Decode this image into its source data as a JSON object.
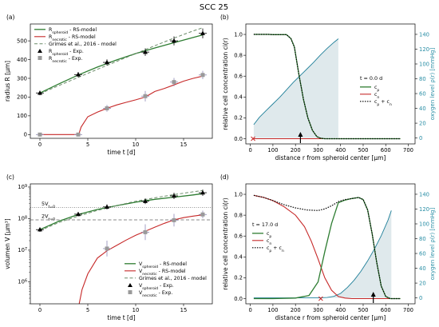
{
  "figure_title": "SCC 25",
  "colors": {
    "spheroid": "#2e7d32",
    "necrotic": "#c62828",
    "grimes": "#6c8c6a",
    "grey_marker": "#9a9a9a",
    "oxygen": "#1f7f99",
    "oxygen_fill": "#dfe9ec",
    "error_bar": "#8e88b6",
    "guide": "#888888"
  },
  "chart_data": [
    {
      "panel": "(a)",
      "type": "line",
      "xlabel": "time t [d]",
      "ylabel": "radius R [μm]",
      "xlim": [
        -1,
        18
      ],
      "ylim": [
        -20,
        590
      ],
      "xticks": [
        0,
        5,
        10,
        15
      ],
      "yticks": [
        0,
        100,
        200,
        300,
        400,
        500
      ],
      "grid": false,
      "legend_position": "upper-left",
      "series": [
        {
          "name": "R_spheroid - RS-model",
          "legend": "Rspheroid - RS-model",
          "style": "model-spheroid",
          "x": [
            0,
            2,
            4,
            6,
            8,
            10,
            12,
            14,
            16,
            17
          ],
          "y": [
            222,
            271,
            318,
            360,
            398,
            432,
            462,
            490,
            518,
            532
          ]
        },
        {
          "name": "R_necrotic - RS-model",
          "legend": "Rnecrotic - RS-model",
          "style": "model-necrotic",
          "x": [
            0,
            4.0,
            4.05,
            4.3,
            5,
            6,
            7,
            8,
            9,
            10,
            11,
            11.5,
            12,
            13,
            14,
            15,
            16,
            17
          ],
          "y": [
            0,
            0,
            0,
            40,
            95,
            120,
            140,
            158,
            172,
            185,
            200,
            215,
            230,
            246,
            265,
            285,
            300,
            312
          ]
        },
        {
          "name": "Grimes et al., 2016 - model",
          "legend": "Grimes et al., 2016 - model",
          "style": "grimes",
          "x": [
            0,
            2,
            4,
            6,
            8,
            10,
            12,
            14,
            16,
            17
          ],
          "y": [
            218,
            262,
            305,
            348,
            390,
            432,
            474,
            515,
            553,
            570
          ]
        },
        {
          "name": "R_spheroid - Exp.",
          "legend": "Rspheroid - Exp.",
          "style": "exp-spheroid",
          "x": [
            0,
            4,
            7,
            11,
            14,
            17
          ],
          "y": [
            222,
            320,
            385,
            440,
            500,
            540
          ],
          "yerr": [
            12,
            14,
            16,
            20,
            24,
            26
          ]
        },
        {
          "name": "R_necrotic - Exp.",
          "legend": "Rnecrotic - Exp.",
          "style": "exp-necrotic",
          "x": [
            0,
            4,
            7,
            11,
            14,
            17
          ],
          "y": [
            0,
            0,
            140,
            205,
            280,
            318
          ],
          "yerr": [
            6,
            6,
            18,
            28,
            22,
            22
          ]
        }
      ]
    },
    {
      "panel": "(b)",
      "type": "line",
      "xlabel": "distance r from spheroid center [μm]",
      "ylabel": "relative cell concentration ci(r)",
      "y2label": "oxygen level ρ(r) [mmHg]",
      "xlim": [
        -20,
        730
      ],
      "ylim": [
        -0.05,
        1.1
      ],
      "y2lim": [
        -8,
        154
      ],
      "xticks": [
        0,
        100,
        200,
        300,
        400,
        500,
        600,
        700
      ],
      "yticks": [
        0.0,
        0.2,
        0.4,
        0.6,
        0.8,
        1.0
      ],
      "y2ticks": [
        0,
        20,
        40,
        60,
        80,
        100,
        120,
        140
      ],
      "annotation": "t = 0.0 d",
      "legend_position": "center-right",
      "markers": {
        "cross_x": 12,
        "arrow_x": 222
      },
      "series": [
        {
          "name": "c_p",
          "legend": "cp",
          "style": "model-spheroid",
          "x": [
            15,
            40,
            60,
            80,
            100,
            120,
            140,
            160,
            180,
            195,
            215,
            235,
            255,
            275,
            295,
            310,
            330,
            360,
            400,
            450,
            500,
            550,
            600,
            650,
            665
          ],
          "y": [
            1.0,
            1.0,
            1.0,
            1.0,
            0.998,
            0.998,
            0.998,
            0.998,
            0.96,
            0.88,
            0.62,
            0.38,
            0.2,
            0.08,
            0.02,
            0.005,
            0,
            0,
            0,
            0,
            0,
            0,
            0,
            0,
            0
          ]
        },
        {
          "name": "c_n",
          "legend": "cn",
          "style": "model-necrotic",
          "x": [
            15,
            665
          ],
          "y": [
            0,
            0
          ]
        },
        {
          "name": "c_p + c_n",
          "legend": "cp + cn",
          "style": "sum",
          "x": [
            15,
            40,
            60,
            80,
            100,
            120,
            140,
            160,
            180,
            195,
            215,
            235,
            255,
            275,
            295,
            310,
            330,
            360,
            400,
            450,
            500,
            550,
            600,
            650,
            665
          ],
          "y": [
            1.0,
            1.0,
            1.0,
            1.0,
            0.998,
            0.998,
            0.998,
            0.998,
            0.96,
            0.88,
            0.62,
            0.38,
            0.2,
            0.08,
            0.02,
            0.005,
            0,
            0,
            0,
            0,
            0,
            0,
            0,
            0,
            0
          ]
        },
        {
          "name": "oxygen",
          "style": "oxygen",
          "axis": "right",
          "x": [
            15,
            40,
            70,
            100,
            130,
            160,
            190,
            220,
            250,
            280,
            310,
            340,
            370,
            390
          ],
          "y": [
            18,
            28,
            37,
            46,
            55,
            65,
            75,
            84,
            93,
            102,
            112,
            121,
            129,
            134
          ]
        }
      ]
    },
    {
      "panel": "(c)",
      "type": "line",
      "yscale": "log",
      "xlabel": "time t [d]",
      "ylabel": "volumen V [μm³]",
      "xlim": [
        -1,
        18
      ],
      "ylim_log10": [
        5.3,
        9.1
      ],
      "xticks": [
        0,
        5,
        10,
        15
      ],
      "yticks_log10": [
        6,
        7,
        8,
        9
      ],
      "legend_position": "lower-right",
      "hlines": [
        {
          "label": "5V_t=0",
          "text": "5Vt=0",
          "log10y": 8.35,
          "style": "dotted"
        },
        {
          "label": "2V_t=0",
          "text": "2Vt=0",
          "log10y": 7.96,
          "style": "dashed"
        }
      ],
      "series": [
        {
          "name": "V_spheroid - RS-model",
          "legend": "Vspheroid - RS-model",
          "style": "model-spheroid",
          "x": [
            0,
            2,
            4,
            6,
            8,
            10,
            12,
            14,
            16,
            17
          ],
          "log10y": [
            7.65,
            7.92,
            8.13,
            8.29,
            8.41,
            8.52,
            8.61,
            8.68,
            8.75,
            8.79
          ]
        },
        {
          "name": "V_necrotic - RS-model",
          "legend": "Vnecrotic - RS-model",
          "style": "model-necrotic",
          "x": [
            4.1,
            4.4,
            5,
            6,
            7,
            8,
            9,
            10,
            11,
            12,
            13,
            14,
            15,
            16,
            17
          ],
          "log10y": [
            5.3,
            5.75,
            6.25,
            6.75,
            6.98,
            7.15,
            7.32,
            7.47,
            7.6,
            7.73,
            7.85,
            7.96,
            8.03,
            8.08,
            8.12
          ]
        },
        {
          "name": "Grimes et al., 2016 - model",
          "legend": "Grimes et al., 2016 - model",
          "style": "grimes",
          "x": [
            0,
            2,
            4,
            6,
            8,
            10,
            12,
            14,
            16,
            17
          ],
          "log10y": [
            7.62,
            7.88,
            8.08,
            8.26,
            8.41,
            8.55,
            8.66,
            8.76,
            8.85,
            8.89
          ]
        },
        {
          "name": "V_spheroid - Exp.",
          "legend": "Vspheroid - Exp.",
          "style": "exp-spheroid",
          "x": [
            0,
            4,
            7,
            11,
            14,
            17
          ],
          "log10y": [
            7.65,
            8.14,
            8.37,
            8.55,
            8.72,
            8.82
          ],
          "yerr_log10": [
            0.07,
            0.07,
            0.08,
            0.09,
            0.1,
            0.1
          ]
        },
        {
          "name": "V_necrotic - Exp.",
          "legend": "Vnecrotic - Exp.",
          "style": "exp-necrotic",
          "x": [
            7,
            11,
            14,
            17
          ],
          "log10y": [
            7.05,
            7.57,
            7.95,
            8.13
          ],
          "yerr_log10": [
            0.25,
            0.25,
            0.2,
            0.12
          ]
        }
      ]
    },
    {
      "panel": "(d)",
      "type": "line",
      "xlabel": "distance r from spheroid center [μm]",
      "ylabel": "relative cell concentration ci(r)",
      "y2label": "oxygen level ρ(r) [mmHg]",
      "xlim": [
        -20,
        730
      ],
      "ylim": [
        -0.05,
        1.1
      ],
      "y2lim": [
        -8,
        154
      ],
      "xticks": [
        0,
        100,
        200,
        300,
        400,
        500,
        600,
        700
      ],
      "yticks": [
        0.0,
        0.2,
        0.4,
        0.6,
        0.8,
        1.0
      ],
      "y2ticks": [
        0,
        20,
        40,
        60,
        80,
        100,
        120,
        140
      ],
      "annotation": "t = 17.0 d",
      "legend_position": "center-left",
      "markers": {
        "cross_x": 312,
        "arrow_x": 545
      },
      "series": [
        {
          "name": "c_p",
          "legend": "cp",
          "style": "model-spheroid",
          "x": [
            15,
            100,
            200,
            260,
            300,
            330,
            360,
            390,
            420,
            450,
            480,
            500,
            520,
            540,
            560,
            580,
            600,
            620,
            640,
            665
          ],
          "y": [
            0,
            0,
            0.005,
            0.03,
            0.16,
            0.45,
            0.72,
            0.92,
            0.945,
            0.96,
            0.97,
            0.95,
            0.85,
            0.62,
            0.35,
            0.12,
            0.02,
            0,
            0,
            0
          ]
        },
        {
          "name": "c_n",
          "legend": "cn",
          "style": "model-necrotic",
          "x": [
            15,
            60,
            100,
            150,
            200,
            240,
            270,
            300,
            330,
            360,
            390,
            420,
            450,
            500,
            665
          ],
          "y": [
            0.99,
            0.97,
            0.94,
            0.88,
            0.8,
            0.69,
            0.55,
            0.38,
            0.2,
            0.08,
            0.02,
            0.005,
            0,
            0,
            0
          ]
        },
        {
          "name": "c_p + c_n",
          "legend": "cp + cn",
          "style": "sum",
          "x": [
            15,
            60,
            100,
            150,
            200,
            250,
            300,
            330,
            360,
            390,
            420,
            450,
            480,
            500,
            520,
            540,
            560,
            580,
            600,
            620,
            665
          ],
          "y": [
            0.99,
            0.97,
            0.94,
            0.9,
            0.87,
            0.85,
            0.845,
            0.86,
            0.89,
            0.93,
            0.95,
            0.96,
            0.97,
            0.95,
            0.85,
            0.62,
            0.35,
            0.12,
            0.02,
            0,
            0
          ]
        },
        {
          "name": "oxygen",
          "style": "oxygen",
          "axis": "right",
          "x": [
            15,
            200,
            300,
            340,
            370,
            400,
            430,
            460,
            490,
            520,
            550,
            580,
            610,
            625
          ],
          "y": [
            0,
            0,
            0,
            0.5,
            2,
            6,
            14,
            24,
            36,
            50,
            66,
            84,
            105,
            118
          ]
        }
      ]
    }
  ]
}
